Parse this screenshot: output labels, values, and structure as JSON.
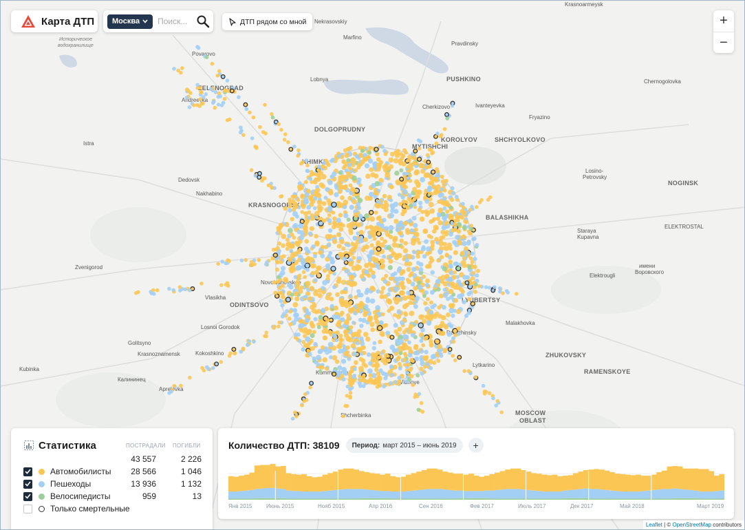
{
  "app": {
    "title": "Карта ДТП",
    "colors": {
      "drivers": "#fcc655",
      "pedestrians": "#a3cff5",
      "cyclists": "#9ccf98",
      "fatal_ring": "#333333",
      "brand": "#e44b3d",
      "dark": "#24364f"
    }
  },
  "search": {
    "city": "Москва",
    "placeholder": "Поиск..."
  },
  "nearby": {
    "label": "ДТП рядом со мной"
  },
  "zoom": {
    "in": "+",
    "out": "−"
  },
  "map_labels": [
    {
      "text": "Krasnoarmeysk"
    },
    {
      "text": "Nekrasovskiy"
    },
    {
      "text": "Marfino"
    },
    {
      "text": "Povarovo"
    },
    {
      "text": "Pravdinsky"
    },
    {
      "text": "Историческое водохранилище"
    },
    {
      "text": "Lobnya"
    },
    {
      "text": "PUSHKINO"
    },
    {
      "text": "ZELENOGRAD"
    },
    {
      "text": "Andreevka"
    },
    {
      "text": "Chernogolovka"
    },
    {
      "text": "Cherkizovo"
    },
    {
      "text": "Ivanteyevka"
    },
    {
      "text": "Fryazino"
    },
    {
      "text": "DOLGOPRUDNY"
    },
    {
      "text": "KOROLYOV"
    },
    {
      "text": "SHCHYOLKOVO"
    },
    {
      "text": "Istra"
    },
    {
      "text": "KHIMKI"
    },
    {
      "text": "MYTISHCHI"
    },
    {
      "text": "Losino-Petrovsky"
    },
    {
      "text": "Dedovsk"
    },
    {
      "text": "NOGINSK"
    },
    {
      "text": "Nakhabino"
    },
    {
      "text": "KRASNOGORSK"
    },
    {
      "text": "BALASHIKHA"
    },
    {
      "text": "Staraya Kupavna"
    },
    {
      "text": "ELEKTROSTAL"
    },
    {
      "text": "Zvenigorod"
    },
    {
      "text": "имени Воровского"
    },
    {
      "text": "Novoivanovskoe"
    },
    {
      "text": "Elektrougli"
    },
    {
      "text": "Vlasikha"
    },
    {
      "text": "ODINTSOVO"
    },
    {
      "text": "LYUBERTSY"
    },
    {
      "text": "Losnoi Gorodok"
    },
    {
      "text": "Malakhovka"
    },
    {
      "text": "Golitsyno"
    },
    {
      "text": "Dzerzhinsky"
    },
    {
      "text": "Krasnoznamensk"
    },
    {
      "text": "Kokoshkino"
    },
    {
      "text": "ZHUKOVSKY"
    },
    {
      "text": "Lytkarino"
    },
    {
      "text": "Kubinka"
    },
    {
      "text": "Kommunarka"
    },
    {
      "text": "RAMENSKOYE"
    },
    {
      "text": "Калининец"
    },
    {
      "text": "Vidnoye"
    },
    {
      "text": "Aprelevka"
    },
    {
      "text": "Shcherbinka"
    },
    {
      "text": "MOSCOW"
    },
    {
      "text": "OBLAST"
    }
  ],
  "stats": {
    "title": "Статистика",
    "col_injured": "ПОСТРАДАЛИ",
    "col_killed": "ПОГИБЛИ",
    "total": {
      "injured": "43 557",
      "killed": "2 226"
    },
    "rows": [
      {
        "label": "Автомобилисты",
        "injured": "28 566",
        "killed": "1 046",
        "checked": true
      },
      {
        "label": "Пешеходы",
        "injured": "13 936",
        "killed": "1 132",
        "checked": true
      },
      {
        "label": "Велосипедисты",
        "injured": "959",
        "killed": "13",
        "checked": true
      }
    ],
    "fatal_only": {
      "label": "Только смертельные",
      "checked": false
    }
  },
  "chart": {
    "title": "Количество ДТП: 38109",
    "period_label": "Период:",
    "period_value": "март 2015 – июнь 2019",
    "add": "+"
  },
  "chart_data": {
    "type": "bar",
    "stacked": true,
    "x_tick_labels": [
      "Янв 2015",
      "Июнь 2015",
      "Нояб 2015",
      "Апр 2016",
      "Сен 2016",
      "Фев 2017",
      "Июль 2017",
      "Дек 2017",
      "Май 2018",
      "Март 2019"
    ],
    "series": [
      {
        "name": "Велосипедисты",
        "color": "#9ccf98",
        "values": [
          2,
          2,
          2,
          2,
          2,
          3,
          3,
          3,
          3,
          3,
          3,
          2,
          2,
          2,
          2,
          2,
          2,
          2,
          2,
          2,
          2,
          2,
          2,
          2,
          2,
          3,
          3,
          3,
          3,
          3,
          3,
          2,
          2,
          2,
          2,
          2,
          2,
          2,
          2,
          2,
          2,
          2,
          2,
          2,
          3,
          3,
          3,
          3,
          3,
          3,
          2,
          2,
          2,
          2,
          2,
          2,
          2,
          2,
          2,
          2,
          2,
          2,
          2,
          2,
          3,
          3,
          3,
          3,
          3,
          2,
          2,
          2,
          2,
          2,
          2,
          2,
          2,
          2,
          2,
          2,
          2,
          2,
          2,
          2,
          2,
          3,
          3,
          3,
          3,
          3,
          2,
          2,
          2,
          2,
          2
        ]
      },
      {
        "name": "Пешеходы",
        "color": "#a3cff5",
        "values": [
          14,
          14,
          15,
          16,
          17,
          18,
          19,
          20,
          20,
          19,
          18,
          16,
          15,
          15,
          14,
          14,
          14,
          14,
          15,
          16,
          17,
          18,
          19,
          19,
          19,
          18,
          17,
          16,
          15,
          14,
          14,
          14,
          14,
          14,
          15,
          16,
          17,
          18,
          19,
          19,
          19,
          18,
          17,
          16,
          15,
          14,
          14,
          14,
          14,
          15,
          16,
          17,
          18,
          19,
          19,
          19,
          18,
          17,
          16,
          15,
          14,
          14,
          14,
          14,
          15,
          16,
          17,
          18,
          19,
          19,
          19,
          18,
          17,
          16,
          15,
          14,
          14,
          14,
          14,
          15,
          16,
          17,
          18,
          19,
          19,
          19,
          18,
          17,
          16,
          15,
          14,
          14,
          14,
          15,
          16
        ]
      },
      {
        "name": "Автомобилисты",
        "color": "#fcc655",
        "values": [
          30,
          29,
          30,
          31,
          34,
          46,
          46,
          45,
          47,
          43,
          45,
          34,
          33,
          32,
          34,
          30,
          28,
          29,
          32,
          34,
          36,
          39,
          40,
          40,
          38,
          35,
          34,
          33,
          33,
          32,
          34,
          30,
          28,
          29,
          32,
          34,
          36,
          38,
          40,
          40,
          38,
          35,
          34,
          33,
          33,
          32,
          34,
          30,
          28,
          29,
          32,
          34,
          36,
          38,
          40,
          40,
          38,
          36,
          34,
          34,
          33,
          32,
          33,
          30,
          29,
          29,
          32,
          34,
          36,
          38,
          39,
          39,
          38,
          36,
          34,
          34,
          33,
          32,
          33,
          30,
          29,
          30,
          34,
          36,
          44,
          44,
          44,
          41,
          42,
          43,
          44,
          44,
          40,
          30,
          32
        ]
      }
    ],
    "grid": true
  }
}
